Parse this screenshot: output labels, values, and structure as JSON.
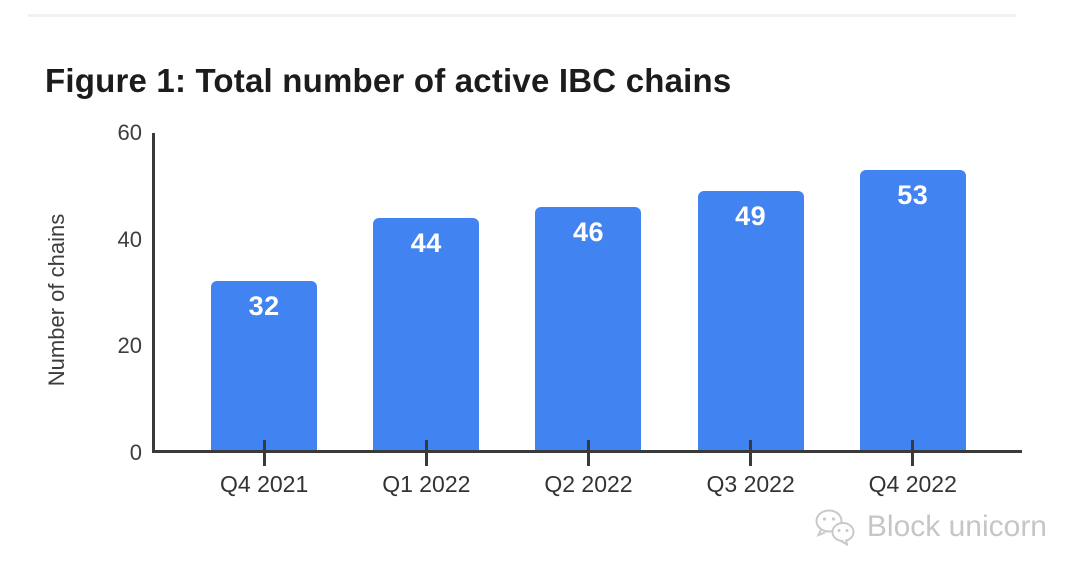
{
  "figure": {
    "title": "Figure 1: Total number of active IBC chains"
  },
  "chart_data": {
    "type": "bar",
    "title": "Figure 1: Total number of active IBC chains",
    "categories": [
      "Q4 2021",
      "Q1 2022",
      "Q2 2022",
      "Q3 2022",
      "Q4 2022"
    ],
    "values": [
      32,
      44,
      46,
      49,
      53
    ],
    "bar_value_labels": [
      "32",
      "44",
      "46",
      "49",
      "53"
    ],
    "xlabel": "",
    "ylabel": "Number of chains",
    "ylim": [
      0,
      60
    ],
    "yticks": [
      0,
      20,
      40,
      60
    ],
    "grid": false,
    "legend_position": "none",
    "bar_color": "#4183F0",
    "bar_label_color": "#FFFFFF",
    "axis_color": "#3A3A3A",
    "tick_label_color": "#3D3D3D"
  },
  "watermark": {
    "brand": "Block unicorn",
    "icon": "wechat-logo-icon",
    "text_color": "#C6C6C6"
  }
}
